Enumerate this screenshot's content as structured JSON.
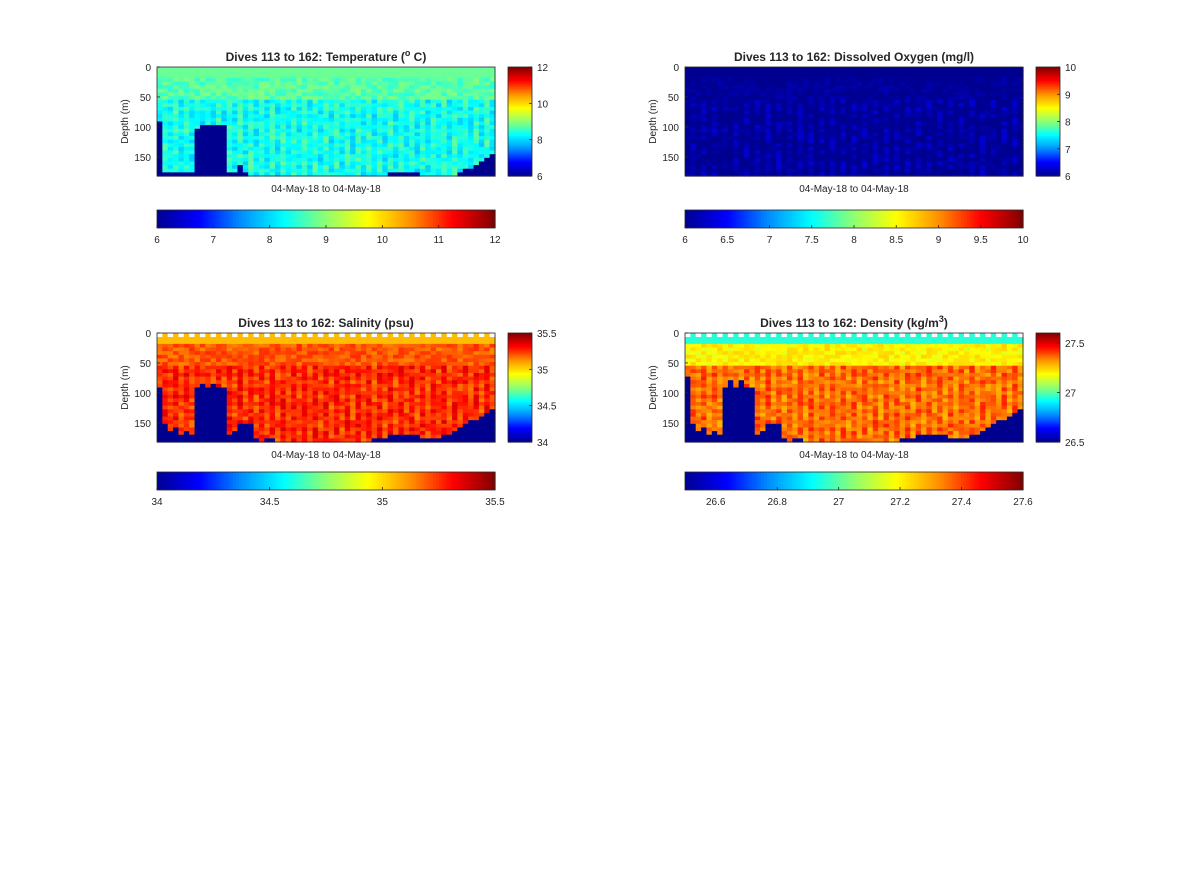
{
  "chart_data": [
    {
      "type": "heatmap",
      "title": "Dives 113 to 162: Temperature (",
      "title_sup": "o",
      "title_end": " C)",
      "xlabel": "04-May-18 to 04-May-18",
      "ylabel": "Depth (m)",
      "y_ticks": [
        "0",
        "50",
        "100",
        "150"
      ],
      "ylim": [
        0,
        182
      ],
      "y_reversed": true,
      "columns": 63,
      "clim": [
        6,
        12
      ],
      "base_value": 8.3,
      "surface_value": 8.8,
      "mid_value": 8.7,
      "surface_cap": false,
      "bottom_profile_m": [
        90,
        172,
        172,
        175,
        175,
        175,
        175,
        100,
        97,
        97,
        97,
        92,
        92,
        175,
        175,
        162,
        175,
        182,
        182,
        182,
        182,
        182,
        182,
        182,
        182,
        182,
        182,
        182,
        182,
        182,
        182,
        182,
        182,
        182,
        182,
        182,
        182,
        182,
        182,
        182,
        182,
        179,
        177,
        175,
        172,
        172,
        172,
        172,
        172,
        177,
        179,
        179,
        179,
        182,
        182,
        182,
        175,
        165,
        165,
        160,
        157,
        150,
        140
      ],
      "colorbar_ticks": [
        "6",
        "8",
        "10",
        "12"
      ],
      "h_colorbar_ticks": [
        "6",
        "7",
        "8",
        "9",
        "10",
        "11",
        "12"
      ],
      "h_colorbar_range": [
        6,
        12
      ]
    },
    {
      "type": "heatmap",
      "title": "Dives 113 to 162: Dissolved Oxygen (mg/l)",
      "title_sup": "",
      "title_end": "",
      "xlabel": "04-May-18 to 04-May-18",
      "ylabel": "Depth (m)",
      "y_ticks": [
        "0",
        "50",
        "100",
        "150"
      ],
      "ylim": [
        0,
        182
      ],
      "y_reversed": true,
      "columns": 63,
      "clim": [
        6,
        10
      ],
      "base_value": 6,
      "surface_value": 6,
      "mid_value": 6,
      "surface_cap": false,
      "bottom_profile_m": [],
      "colorbar_ticks": [
        "6",
        "7",
        "8",
        "9",
        "10"
      ],
      "h_colorbar_ticks": [
        "6",
        "6.5",
        "7",
        "7.5",
        "8",
        "8.5",
        "9",
        "9.5",
        "10"
      ],
      "h_colorbar_range": [
        6,
        10
      ]
    },
    {
      "type": "heatmap",
      "title": "Dives 113 to 162: Salinity (psu)",
      "title_sup": "",
      "title_end": "",
      "xlabel": "04-May-18 to 04-May-18",
      "ylabel": "Depth (m)",
      "y_ticks": [
        "0",
        "50",
        "100",
        "150"
      ],
      "ylim": [
        0,
        182
      ],
      "y_reversed": true,
      "columns": 63,
      "clim": [
        34,
        35.5
      ],
      "base_value": 35.25,
      "surface_value": 35.05,
      "mid_value": 35.2,
      "surface_cap": true,
      "bottom_profile_m": [
        90,
        150,
        160,
        155,
        165,
        160,
        165,
        85,
        80,
        88,
        80,
        85,
        85,
        165,
        160,
        150,
        150,
        150,
        175,
        182,
        175,
        175,
        182,
        182,
        182,
        182,
        182,
        182,
        182,
        182,
        182,
        182,
        182,
        182,
        182,
        182,
        182,
        182,
        182,
        182,
        175,
        172,
        170,
        165,
        165,
        165,
        165,
        165,
        165,
        175,
        175,
        172,
        172,
        168,
        165,
        160,
        155,
        150,
        145,
        140,
        135,
        130,
        125
      ],
      "colorbar_ticks": [
        "34",
        "34.5",
        "35",
        "35.5"
      ],
      "h_colorbar_ticks": [
        "34",
        "34.5",
        "35",
        "35.5"
      ],
      "h_colorbar_range": [
        34,
        35.5
      ]
    },
    {
      "type": "heatmap",
      "title": "Dives 113 to 162: Density (kg/m",
      "title_sup": "3",
      "title_end": ")",
      "xlabel": "04-May-18 to 04-May-18",
      "ylabel": "Depth (m)",
      "y_ticks": [
        "0",
        "50",
        "100",
        "150"
      ],
      "ylim": [
        0,
        182
      ],
      "y_reversed": true,
      "columns": 63,
      "clim": [
        26.5,
        27.6
      ],
      "base_value": 27.35,
      "surface_value": 26.95,
      "mid_value": 27.2,
      "surface_cap": true,
      "bottom_profile_m": [
        70,
        150,
        160,
        155,
        165,
        160,
        165,
        85,
        75,
        85,
        75,
        85,
        85,
        165,
        160,
        150,
        150,
        150,
        175,
        182,
        175,
        175,
        182,
        182,
        182,
        182,
        182,
        182,
        182,
        182,
        182,
        182,
        182,
        182,
        182,
        182,
        182,
        182,
        182,
        182,
        175,
        172,
        170,
        165,
        165,
        165,
        165,
        165,
        165,
        175,
        175,
        172,
        172,
        168,
        165,
        160,
        155,
        150,
        145,
        140,
        135,
        130,
        125
      ],
      "colorbar_ticks": [
        "26.5",
        "27",
        "27.5"
      ],
      "colorbar_tick_values": [
        26.5,
        27,
        27.5
      ],
      "h_colorbar_ticks": [
        "26.6",
        "26.8",
        "27",
        "27.2",
        "27.4",
        "27.6"
      ],
      "h_colorbar_range": [
        26.5,
        27.6
      ]
    }
  ],
  "colormap": [
    "#000090",
    "#0000ff",
    "#0090ff",
    "#00ffff",
    "#90ff70",
    "#ffff00",
    "#ff9000",
    "#ff0000",
    "#800000"
  ],
  "fill_color": "#00008f"
}
